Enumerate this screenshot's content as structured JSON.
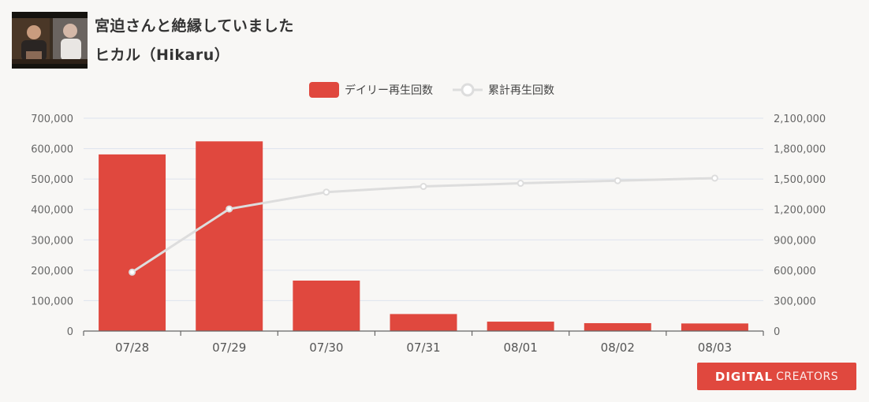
{
  "video": {
    "title": "宮迫さんと絶縁していました",
    "channel": "ヒカル（Hikaru）"
  },
  "legend": {
    "daily_label": "デイリー再生回数",
    "cumulative_label": "累計再生回数"
  },
  "colors": {
    "bar": "#e0483e",
    "line": "#dddddd",
    "grid": "#dde3ee",
    "axis": "#666666"
  },
  "chart_data": {
    "type": "bar",
    "categories": [
      "07/28",
      "07/29",
      "07/30",
      "07/31",
      "08/01",
      "08/02",
      "08/03"
    ],
    "series": [
      {
        "name": "デイリー再生回数",
        "type": "bar",
        "axis": "left",
        "values": [
          581000,
          624000,
          166000,
          56000,
          31000,
          26000,
          25000
        ]
      },
      {
        "name": "累計再生回数",
        "type": "line",
        "axis": "right",
        "values": [
          581000,
          1205000,
          1371000,
          1427000,
          1458000,
          1484000,
          1509000
        ]
      }
    ],
    "y_left": {
      "ylim": [
        0,
        700000
      ],
      "ticks": [
        0,
        100000,
        200000,
        300000,
        400000,
        500000,
        600000,
        700000
      ],
      "tick_labels": [
        "0",
        "100,000",
        "200,000",
        "300,000",
        "400,000",
        "500,000",
        "600,000",
        "700,000"
      ]
    },
    "y_right": {
      "ylim": [
        0,
        2100000
      ],
      "ticks": [
        0,
        300000,
        600000,
        900000,
        1200000,
        1500000,
        1800000,
        2100000
      ],
      "tick_labels": [
        "0",
        "300,000",
        "600,000",
        "900,000",
        "1,200,000",
        "1,500,000",
        "1,800,000",
        "2,100,000"
      ]
    },
    "grid": true,
    "legend_position": "top-center"
  },
  "branding": {
    "logo_main": "DIGITAL",
    "logo_sub": "CREATORS"
  }
}
